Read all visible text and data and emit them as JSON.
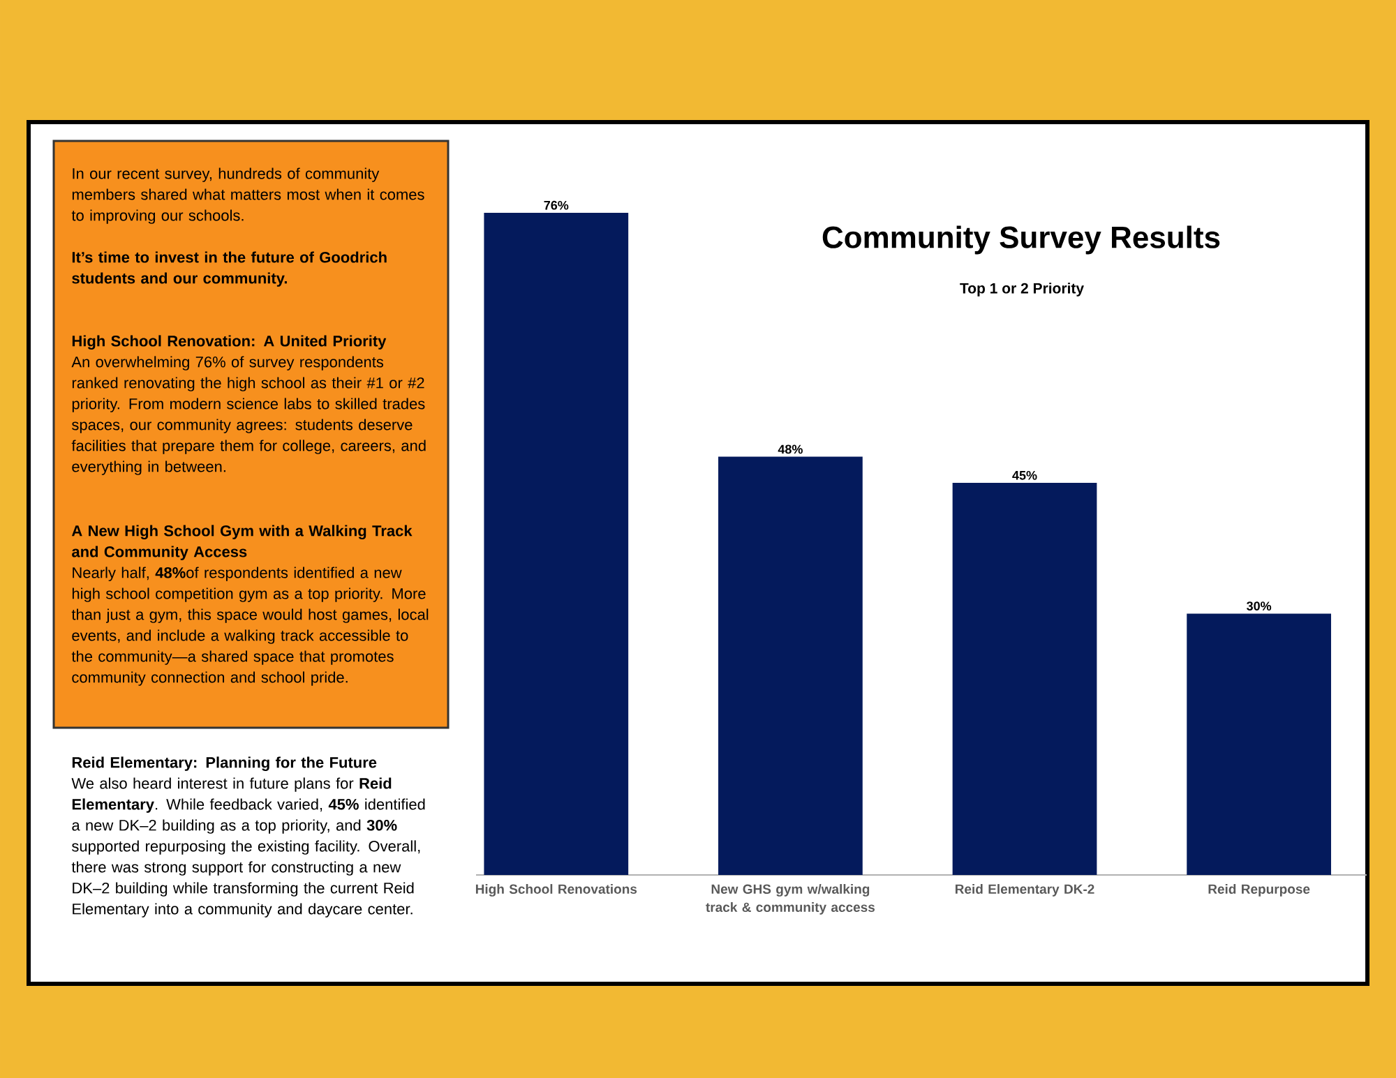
{
  "chart_data": {
    "type": "bar",
    "title": "Community Survey Results",
    "subtitle": "Top 1 or 2 Priority",
    "categories": [
      "High School Renovations",
      "New GHS gym w/walking track & community access",
      "Reid Elementary DK-2",
      "Reid Repurpose"
    ],
    "values": [
      76,
      48,
      45,
      30
    ],
    "value_labels": [
      "76%",
      "48%",
      "45%",
      "30%"
    ],
    "color": "#041a5c",
    "annotations": [
      "In our recent survey, hundreds of community members shared what matters most when it comes to improving our schools.",
      "It’s time to invest in the future of Goodrich students and our community.",
      "High School Renovation: A United Priority",
      "An overwhelming 76% of survey respondents ranked renovating the high school as their #1 or #2 priority. From modern science labs to skilled trades spaces, our community agrees: students deserve facilities that prepare them for college, careers, and everything in between.",
      "A New High School Gym with a Walking Track and Community Access",
      "Nearly half, **48%**of respondents identified a new high school competition gym as a top priority. More than just a gym, this space would host games, local events, and include a walking track accessible to the community—a shared space that promotes community connection and school pride.",
      "Reid Elementary: Planning for the Future",
      "We also heard interest in future plans for **Reid Elementary**. While feedback varied, **45%** identified a new DK–2 building as a top priority, and **30%** supported repurposing the existing facility. Overall, there was strong support for constructing a new DK–2 building while transforming the current Reid Elementary into a community and daycare center."
    ]
  }
}
